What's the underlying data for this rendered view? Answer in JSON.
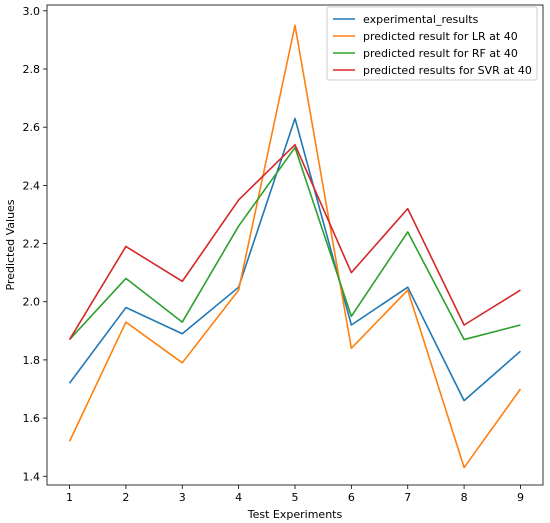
{
  "chart_data": {
    "type": "line",
    "title": "",
    "xlabel": "Test Experiments",
    "ylabel": "Predicted Values",
    "x": [
      1,
      2,
      3,
      4,
      5,
      6,
      7,
      8,
      9
    ],
    "xlim": [
      0.6,
      9.4
    ],
    "ylim": [
      1.37,
      3.02
    ],
    "yticks": [
      "1.4",
      "1.6",
      "1.8",
      "2.0",
      "2.2",
      "2.4",
      "2.6",
      "2.8",
      "3.0"
    ],
    "xticks": [
      "1",
      "2",
      "3",
      "4",
      "5",
      "6",
      "7",
      "8",
      "9"
    ],
    "grid": false,
    "legend_position": "top-right",
    "series": [
      {
        "name": "experimental_results",
        "color": "#1f77b4",
        "values": [
          1.72,
          1.98,
          1.89,
          2.05,
          2.63,
          1.92,
          2.05,
          1.66,
          1.83
        ]
      },
      {
        "name": "predicted result for LR at 40",
        "color": "#ff7f0e",
        "values": [
          1.52,
          1.93,
          1.79,
          2.04,
          2.95,
          1.84,
          2.04,
          1.43,
          1.7
        ]
      },
      {
        "name": "predicted result for RF at 40",
        "color": "#2ca02c",
        "values": [
          1.87,
          2.08,
          1.93,
          2.26,
          2.53,
          1.95,
          2.24,
          1.87,
          1.92
        ]
      },
      {
        "name": "predicted results for SVR at 40",
        "color": "#d62728",
        "values": [
          1.87,
          2.19,
          2.07,
          2.35,
          2.54,
          2.1,
          2.32,
          1.92,
          2.04
        ]
      }
    ]
  }
}
